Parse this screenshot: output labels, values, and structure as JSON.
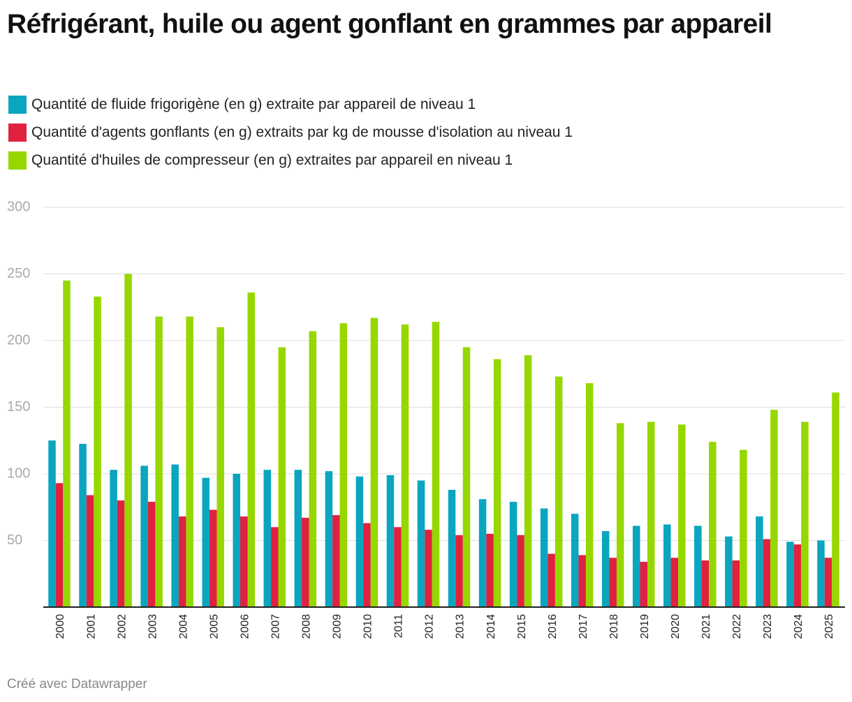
{
  "chart_data": {
    "type": "grouped-bar",
    "title": "Réfrigérant, huile ou agent gonflant en grammes par appareil",
    "credit": "Créé avec Datawrapper",
    "categories": [
      "2000",
      "2001",
      "2002",
      "2003",
      "2004",
      "2005",
      "2006",
      "2007",
      "2008",
      "2009",
      "2010",
      "2011",
      "2012",
      "2013",
      "2014",
      "2015",
      "2016",
      "2017",
      "2018",
      "2019",
      "2020",
      "2021",
      "2022",
      "2023",
      "2024",
      "2025"
    ],
    "series": [
      {
        "name": "Quantité de fluide frigorigène (en g) extraite par appareil de niveau 1",
        "color": "#0aa5be",
        "values": [
          125,
          122.5,
          103,
          106,
          107,
          97,
          100,
          103,
          103,
          102,
          98,
          99,
          95,
          88,
          81,
          79,
          74,
          70,
          57,
          61,
          62,
          61,
          53,
          68,
          49,
          50
        ]
      },
      {
        "name": "Quantité d'agents gonflants (en g) extraits par kg de mousse d'isolation au niveau 1",
        "color": "#e0213f",
        "values": [
          93,
          84,
          80,
          79,
          68,
          73,
          68,
          60,
          67,
          69,
          63,
          60,
          58,
          54,
          55,
          54,
          40,
          39,
          37,
          34,
          37,
          35,
          35,
          51,
          47,
          37
        ]
      },
      {
        "name": "Quantité d'huiles de compresseur (en g) extraites par appareil en niveau 1",
        "color": "#96d700",
        "values": [
          245,
          233,
          250,
          218,
          218,
          210,
          236,
          195,
          207,
          213,
          217,
          212,
          214,
          195,
          186,
          189,
          173,
          168,
          138,
          139,
          137,
          124,
          118,
          148,
          139,
          161
        ]
      }
    ],
    "ylim": [
      0,
      300
    ],
    "yticks": [
      50,
      100,
      150,
      200,
      250,
      300
    ],
    "grid": true
  }
}
